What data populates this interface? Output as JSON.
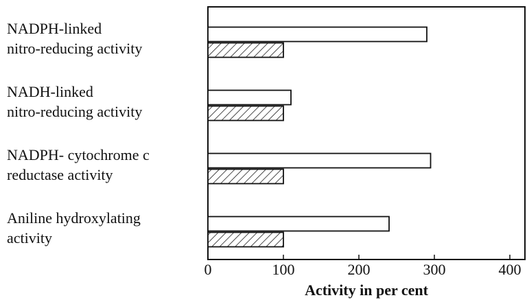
{
  "chart_data": {
    "type": "barh",
    "categories": [
      [
        "NADPH-linked",
        "nitro-reducing activity"
      ],
      [
        "NADH-linked",
        "nitro-reducing activity"
      ],
      [
        "NADPH- cytochrome c",
        "reductase activity"
      ],
      [
        "Aniline hydroxylating",
        "activity"
      ]
    ],
    "series": [
      {
        "color": "#ffffff",
        "hatch": false,
        "values": [
          290,
          110,
          295,
          240
        ]
      },
      {
        "color": "#ffffff",
        "hatch": true,
        "values": [
          100,
          100,
          100,
          100
        ]
      }
    ],
    "xlabel": "Activity in per cent",
    "xlim": [
      0,
      420
    ],
    "xticks": [
      0,
      100,
      200,
      300,
      400
    ],
    "grid": false
  }
}
